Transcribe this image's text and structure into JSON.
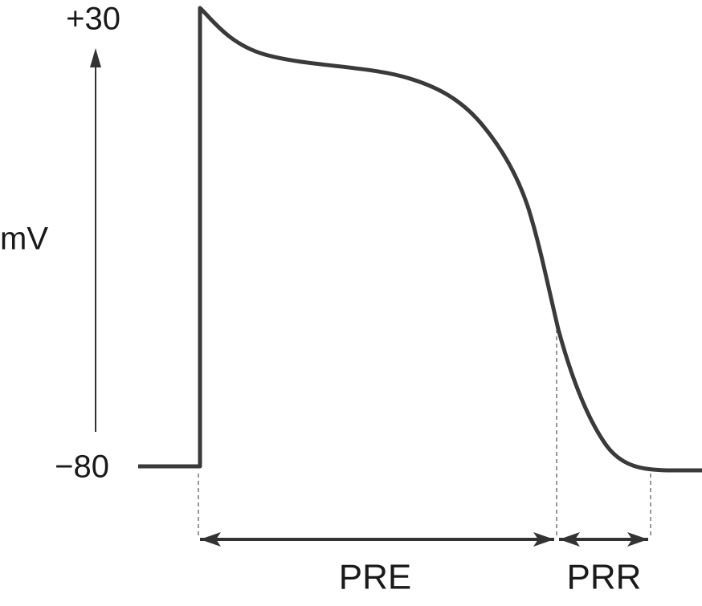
{
  "y_axis": {
    "top_label": "+30",
    "label": "mV",
    "bottom_label": "−80"
  },
  "intervals": [
    {
      "label": "PRE"
    },
    {
      "label": "PRR"
    }
  ]
}
